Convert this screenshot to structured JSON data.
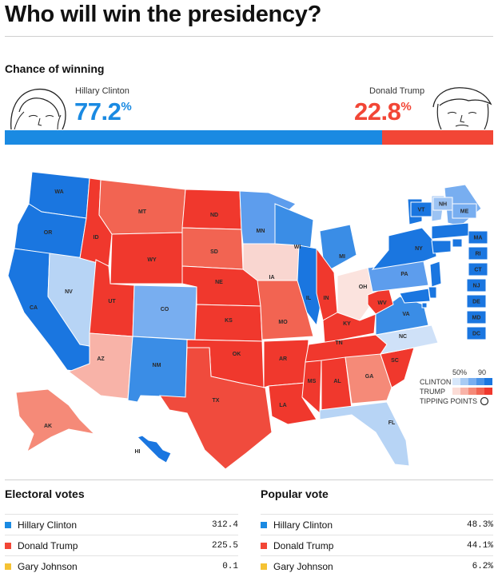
{
  "title": "Who will win the presidency?",
  "chance": {
    "heading": "Chance of winning",
    "clinton": {
      "name": "Hillary Clinton",
      "pct": "77.2",
      "pct_sign": "%",
      "value": 77.2,
      "color": "#1a8ae2"
    },
    "trump": {
      "name": "Donald Trump",
      "pct": "22.8",
      "pct_sign": "%",
      "value": 22.8,
      "color": "#f24636"
    }
  },
  "map": {
    "states": [
      {
        "abbr": "WA",
        "color": "#1a76e0"
      },
      {
        "abbr": "OR",
        "color": "#1a76e0"
      },
      {
        "abbr": "CA",
        "color": "#1a76e0"
      },
      {
        "abbr": "NV",
        "color": "#b7d4f5"
      },
      {
        "abbr": "ID",
        "color": "#f0382d"
      },
      {
        "abbr": "MT",
        "color": "#f26452"
      },
      {
        "abbr": "WY",
        "color": "#f0382d"
      },
      {
        "abbr": "UT",
        "color": "#f0382d"
      },
      {
        "abbr": "AZ",
        "color": "#f8b3a8"
      },
      {
        "abbr": "CO",
        "color": "#78aef0"
      },
      {
        "abbr": "NM",
        "color": "#3a8de6"
      },
      {
        "abbr": "ND",
        "color": "#f0382d"
      },
      {
        "abbr": "SD",
        "color": "#f26452"
      },
      {
        "abbr": "NE",
        "color": "#f0382d"
      },
      {
        "abbr": "KS",
        "color": "#f0382d"
      },
      {
        "abbr": "OK",
        "color": "#f0382d"
      },
      {
        "abbr": "TX",
        "color": "#f04b3d"
      },
      {
        "abbr": "MN",
        "color": "#5d9ded"
      },
      {
        "abbr": "IA",
        "color": "#f9d6d0"
      },
      {
        "abbr": "MO",
        "color": "#f26452"
      },
      {
        "abbr": "AR",
        "color": "#f0382d"
      },
      {
        "abbr": "LA",
        "color": "#f0382d"
      },
      {
        "abbr": "WI",
        "color": "#3a8de6"
      },
      {
        "abbr": "IL",
        "color": "#1a76e0"
      },
      {
        "abbr": "MI",
        "color": "#3a8de6"
      },
      {
        "abbr": "IN",
        "color": "#f0382d"
      },
      {
        "abbr": "OH",
        "color": "#fbe3de"
      },
      {
        "abbr": "KY",
        "color": "#f0382d"
      },
      {
        "abbr": "TN",
        "color": "#f0382d"
      },
      {
        "abbr": "MS",
        "color": "#f0382d"
      },
      {
        "abbr": "AL",
        "color": "#f0382d"
      },
      {
        "abbr": "GA",
        "color": "#f58a78"
      },
      {
        "abbr": "FL",
        "color": "#b7d4f5"
      },
      {
        "abbr": "SC",
        "color": "#f0382d"
      },
      {
        "abbr": "NC",
        "color": "#cfe1f8"
      },
      {
        "abbr": "VA",
        "color": "#3a8de6"
      },
      {
        "abbr": "WV",
        "color": "#f0382d"
      },
      {
        "abbr": "PA",
        "color": "#5d9ded"
      },
      {
        "abbr": "NY",
        "color": "#1a76e0"
      },
      {
        "abbr": "VT",
        "color": "#1a76e0"
      },
      {
        "abbr": "NH",
        "color": "#9cc3f3"
      },
      {
        "abbr": "ME",
        "color": "#78aef0"
      },
      {
        "abbr": "MA",
        "color": "#1a76e0"
      },
      {
        "abbr": "RI",
        "color": "#1a76e0"
      },
      {
        "abbr": "CT",
        "color": "#1a76e0"
      },
      {
        "abbr": "NJ",
        "color": "#1a76e0"
      },
      {
        "abbr": "DE",
        "color": "#1a76e0"
      },
      {
        "abbr": "MD",
        "color": "#1a76e0"
      },
      {
        "abbr": "DC",
        "color": "#1a76e0"
      },
      {
        "abbr": "AK",
        "color": "#f58a78"
      },
      {
        "abbr": "HI",
        "color": "#1a76e0"
      }
    ],
    "legend": {
      "pct_low": "50%",
      "pct_high": "90",
      "clinton_label": "CLINTON",
      "trump_label": "TRUMP",
      "tipping_label": "TIPPING POINTS",
      "clinton_scale": [
        "#d7e7fa",
        "#a8cbf4",
        "#78aef0",
        "#4a93e8",
        "#1a76e0"
      ],
      "trump_scale": [
        "#fbdcd6",
        "#f8b3a8",
        "#f58a78",
        "#f26452",
        "#f0382d"
      ]
    }
  },
  "electoral": {
    "heading": "Electoral votes",
    "rows": [
      {
        "name": "Hillary Clinton",
        "value": "312.4",
        "color": "#1a8ae2"
      },
      {
        "name": "Donald Trump",
        "value": "225.5",
        "color": "#f24636"
      },
      {
        "name": "Gary Johnson",
        "value": "0.1",
        "color": "#f5c233"
      }
    ]
  },
  "popular": {
    "heading": "Popular vote",
    "rows": [
      {
        "name": "Hillary Clinton",
        "value": "48.3%",
        "color": "#1a8ae2"
      },
      {
        "name": "Donald Trump",
        "value": "44.1%",
        "color": "#f24636"
      },
      {
        "name": "Gary Johnson",
        "value": "6.2%",
        "color": "#f5c233"
      }
    ]
  }
}
